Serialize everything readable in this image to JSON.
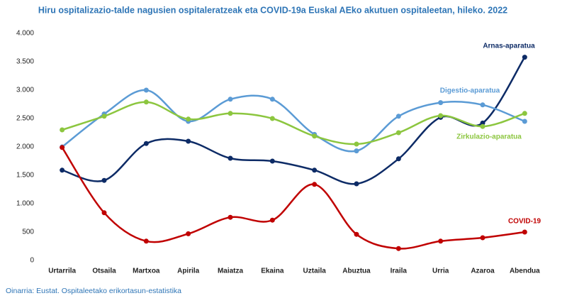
{
  "chart_data": {
    "type": "line",
    "title": "Hiru ospitalizazio-talde nagusien ospitaleratzeak eta COVID-19a Euskal AEko akutuen ospitaleetan, hileko. 2022",
    "source": "Oinarria: Eustat. Ospitaleetako erikortasun-estatistika",
    "categories": [
      "Urtarrila",
      "Otsaila",
      "Martxoa",
      "Apirila",
      "Maiatza",
      "Ekaina",
      "Uztaila",
      "Abuztua",
      "Iraila",
      "Urria",
      "Azaroa",
      "Abendua"
    ],
    "series": [
      {
        "name": "Arnas-aparatua",
        "color": "#0d2b66",
        "values": [
          1590,
          1410,
          2060,
          2100,
          1800,
          1750,
          1590,
          1350,
          1790,
          2520,
          2420,
          3580
        ]
      },
      {
        "name": "Digestio-aparatua",
        "color": "#5b9bd5",
        "values": [
          2000,
          2580,
          3000,
          2450,
          2840,
          2840,
          2220,
          1930,
          2540,
          2780,
          2740,
          2450
        ]
      },
      {
        "name": "Zirkulazio-aparatua",
        "color": "#8cc63f",
        "values": [
          2300,
          2540,
          2790,
          2490,
          2590,
          2500,
          2190,
          2050,
          2250,
          2550,
          2360,
          2590
        ]
      },
      {
        "name": "COVID-19",
        "color": "#c00000",
        "values": [
          1990,
          840,
          340,
          470,
          760,
          710,
          1340,
          460,
          210,
          340,
          400,
          500
        ]
      }
    ],
    "ylim": [
      0,
      4000
    ],
    "yticks": [
      0,
      {
        "value": 500,
        "label": "500"
      },
      {
        "value": 1000,
        "label": "1.000"
      },
      {
        "value": 1500,
        "label": "1.500"
      },
      {
        "value": 2000,
        "label": "2.000"
      },
      {
        "value": 2500,
        "label": "2.500"
      },
      {
        "value": 3000,
        "label": "3.000"
      },
      {
        "value": 3500,
        "label": "3.500"
      },
      {
        "value": 4000,
        "label": "4.000"
      }
    ],
    "grid": false
  }
}
